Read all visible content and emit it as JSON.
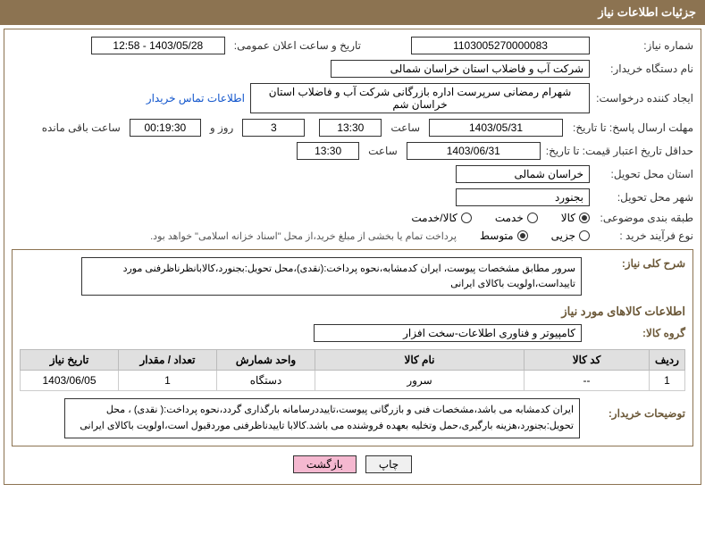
{
  "header": {
    "title": "جزئیات اطلاعات نیاز"
  },
  "fields": {
    "need_number_label": "شماره نیاز:",
    "need_number": "1103005270000083",
    "announce_label": "تاریخ و ساعت اعلان عمومی:",
    "announce_value": "1403/05/28 - 12:58",
    "buyer_org_label": "نام دستگاه خریدار:",
    "buyer_org": "شرکت آب و فاضلاب استان خراسان شمالی",
    "requester_label": "ایجاد کننده درخواست:",
    "requester": "شهرام رمضانی سرپرست اداره بازرگانی  شرکت آب و فاضلاب استان خراسان شم",
    "contact_link": "اطلاعات تماس خریدار",
    "reply_deadline_label": "مهلت ارسال پاسخ: تا تاریخ:",
    "reply_date": "1403/05/31",
    "time_label": "ساعت",
    "reply_time": "13:30",
    "days_value": "3",
    "days_and": "روز و",
    "remaining_time": "00:19:30",
    "remaining_label": "ساعت باقی مانده",
    "price_valid_label": "حداقل تاریخ اعتبار قیمت: تا تاریخ:",
    "price_valid_date": "1403/06/31",
    "price_valid_time": "13:30",
    "delivery_province_label": "استان محل تحویل:",
    "delivery_province": "خراسان شمالی",
    "delivery_city_label": "شهر محل تحویل:",
    "delivery_city": "بجنورد",
    "category_label": "طبقه بندی موضوعی:",
    "cat_goods": "کالا",
    "cat_service": "خدمت",
    "cat_goods_service": "کالا/خدمت",
    "purchase_type_label": "نوع فرآیند خرید :",
    "pt_minor": "جزیی",
    "pt_medium": "متوسط",
    "purchase_note": "پرداخت تمام یا بخشی از مبلغ خرید،از محل \"اسناد خزانه اسلامی\" خواهد بود.",
    "general_desc_label": "شرح کلی نیاز:",
    "general_desc": "سرور مطابق مشخصات پیوست، ایران کدمشابه،نحوه پرداخت:(نقدی)،محل تحویل:بجنورد،کالابانظرناظرفنی مورد تاییداست،اولویت باکالای ایرانی",
    "goods_info_title": "اطلاعات کالاهای مورد نیاز",
    "group_label": "گروه کالا:",
    "group_value": "کامپیوتر و فناوری اطلاعات-سخت افزار",
    "buyer_notes_label": "توضیحات خریدار:",
    "buyer_notes": "ایران کدمشابه می باشد،مشخصات فنی و بازرگانی پیوست،تاییددرسامانه بارگذاری گردد،نحوه پرداخت:( نقدی)  ، محل تحویل:بجنورد،هزینه بارگیری،حمل وتخلیه بعهده فروشنده می باشد.کالابا تاییدناظرفنی موردقبول است،اولویت باکالای ایرانی"
  },
  "table": {
    "headers": [
      "ردیف",
      "کد کالا",
      "نام کالا",
      "واحد شمارش",
      "تعداد / مقدار",
      "تاریخ نیاز"
    ],
    "rows": [
      [
        "1",
        "--",
        "سرور",
        "دستگاه",
        "1",
        "1403/06/05"
      ]
    ],
    "col_widths": [
      "40px",
      "140px",
      "auto",
      "110px",
      "110px",
      "110px"
    ]
  },
  "buttons": {
    "print": "چاپ",
    "back": "بازگشت"
  },
  "colors": {
    "header_bg": "#8c7351",
    "border": "#8c7351",
    "link": "#1155cc",
    "btn_back_bg": "#f5b8d0"
  }
}
